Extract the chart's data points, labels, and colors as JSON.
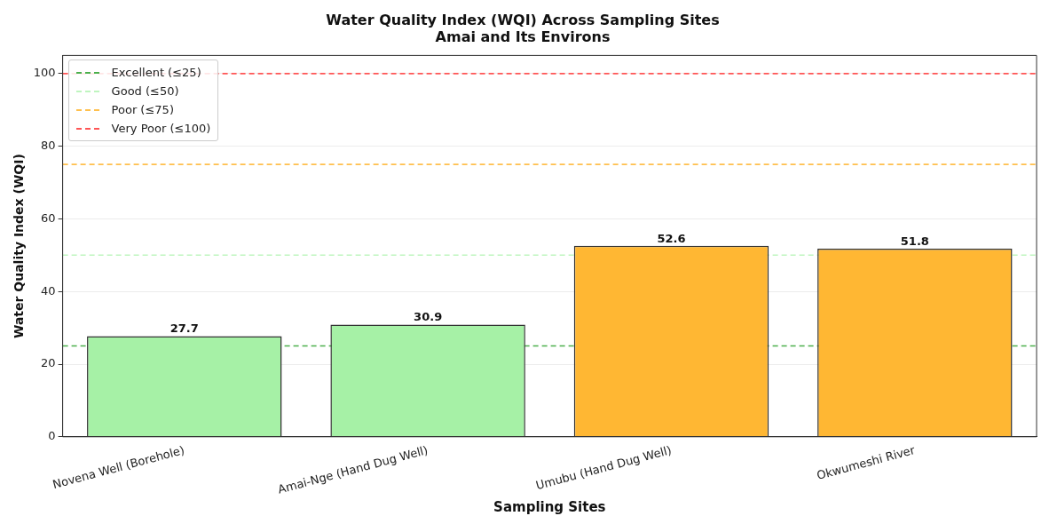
{
  "chart_data": {
    "type": "bar",
    "title": "Water Quality Index (WQI) Across Sampling Sites",
    "subtitle": "Amai and Its Environs",
    "xlabel": "Sampling Sites",
    "ylabel": "Water Quality Index (WQI)",
    "categories": [
      "Novena Well (Borehole)",
      "Amai-Nge (Hand Dug Well)",
      "Umubu (Hand Dug Well)",
      "Okwumeshi River"
    ],
    "values": [
      27.7,
      30.9,
      52.6,
      51.8
    ],
    "colors": [
      "#a6f1a6",
      "#a6f1a6",
      "#ffb733",
      "#ffb733"
    ],
    "ylim": [
      0,
      105
    ],
    "yticks": [
      0,
      20,
      40,
      60,
      80,
      100
    ],
    "grid": "y",
    "data_labels": true,
    "legend": "top left",
    "ref_lines": [
      {
        "axis": "y",
        "value": 25,
        "label": "Excellent (≤25)",
        "color": "#4caf4c",
        "line_style": "dashed"
      },
      {
        "axis": "y",
        "value": 50,
        "label": "Good (≤50)",
        "color": "#bff5bf",
        "line_style": "dashed"
      },
      {
        "axis": "y",
        "value": 75,
        "label": "Poor (≤75)",
        "color": "#ffc04d",
        "line_style": "dashed"
      },
      {
        "axis": "y",
        "value": 100,
        "label": "Very Poor (≤100)",
        "color": "#ff5555",
        "line_style": "dashed"
      }
    ]
  }
}
